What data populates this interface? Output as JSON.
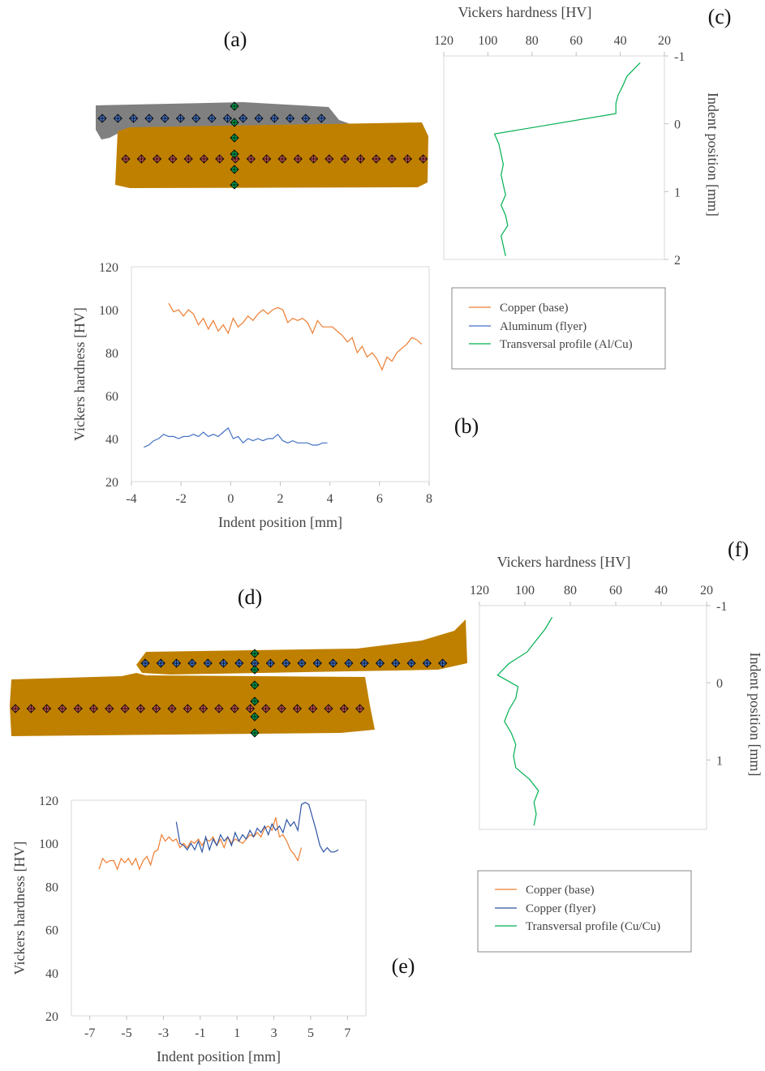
{
  "panel_labels": {
    "a": "(a)",
    "b": "(b)",
    "c": "(c)",
    "d": "(d)",
    "e": "(e)",
    "f": "(f)"
  },
  "colors": {
    "copper_fill": "#BF8000",
    "aluminum_fill": "#808080",
    "marker_blue": "#4472C4",
    "marker_red": "#C0504D",
    "marker_green": "#00A550",
    "series_orange": "#ED7D31",
    "series_blue": "#4472C4",
    "series_green": "#00B050"
  },
  "legend_top": {
    "entries": [
      {
        "label": "Copper (base)",
        "color": "#ED7D31"
      },
      {
        "label": "Aluminum (flyer)",
        "color": "#4472C4"
      },
      {
        "label": "Transversal profile (Al/Cu)",
        "color": "#00B050"
      }
    ]
  },
  "legend_bottom": {
    "entries": [
      {
        "label": "Copper (base)",
        "color": "#ED7D31"
      },
      {
        "label": "Copper (flyer)",
        "color": "#2F55A4"
      },
      {
        "label": "Transversal profile (Cu/Cu)",
        "color": "#00B050"
      }
    ]
  },
  "chart_data": [
    {
      "id": "b",
      "type": "line",
      "xlabel": "Indent position [mm]",
      "ylabel": "Vickers hardness [HV]",
      "xlim": [
        -4,
        8
      ],
      "ylim": [
        20,
        120
      ],
      "xticks": [
        -4,
        -2,
        0,
        2,
        4,
        6,
        8
      ],
      "yticks": [
        20,
        40,
        60,
        80,
        100,
        120
      ],
      "series": [
        {
          "name": "Copper (base)",
          "color": "#ED7D31",
          "x": [
            -2.5,
            -2.3,
            -2.1,
            -1.9,
            -1.7,
            -1.5,
            -1.3,
            -1.1,
            -0.9,
            -0.7,
            -0.5,
            -0.3,
            -0.1,
            0.1,
            0.3,
            0.5,
            0.7,
            0.9,
            1.1,
            1.3,
            1.5,
            1.7,
            1.9,
            2.1,
            2.3,
            2.5,
            2.7,
            2.9,
            3.1,
            3.3,
            3.5,
            3.7,
            3.9,
            4.1,
            4.3,
            4.5,
            4.7,
            4.9,
            5.1,
            5.3,
            5.5,
            5.7,
            5.9,
            6.1,
            6.3,
            6.5,
            6.7,
            6.9,
            7.1,
            7.3,
            7.5,
            7.7
          ],
          "y": [
            103,
            99,
            100,
            97,
            100,
            98,
            93,
            96,
            91,
            95,
            90,
            93,
            89,
            96,
            92,
            94,
            97,
            95,
            98,
            100,
            98,
            100,
            101,
            100,
            94,
            96,
            95,
            96,
            94,
            89,
            95,
            92,
            92,
            92,
            90,
            88,
            85,
            87,
            80,
            83,
            78,
            80,
            77,
            72,
            78,
            76,
            80,
            82,
            84,
            87,
            86,
            84
          ]
        },
        {
          "name": "Aluminum (flyer)",
          "color": "#4472C4",
          "x": [
            -3.5,
            -3.3,
            -3.1,
            -2.9,
            -2.7,
            -2.5,
            -2.3,
            -2.1,
            -1.9,
            -1.7,
            -1.5,
            -1.3,
            -1.1,
            -0.9,
            -0.7,
            -0.5,
            -0.3,
            -0.1,
            0.1,
            0.3,
            0.5,
            0.7,
            0.9,
            1.1,
            1.3,
            1.5,
            1.7,
            1.9,
            2.1,
            2.3,
            2.5,
            2.7,
            2.9,
            3.1,
            3.3,
            3.5,
            3.7,
            3.9
          ],
          "y": [
            36,
            37,
            39,
            40,
            42,
            41,
            41,
            40,
            41,
            41,
            42,
            41,
            43,
            41,
            42,
            41,
            43,
            45,
            40,
            41,
            38,
            40,
            39,
            40,
            39,
            40,
            40,
            42,
            39,
            38,
            39,
            38,
            38,
            38,
            37,
            37,
            38,
            38
          ]
        }
      ]
    },
    {
      "id": "c",
      "type": "line",
      "xlabel": "Vickers hardness [HV]",
      "ylabel": "Indent position [mm]",
      "xlim": [
        120,
        20
      ],
      "ylim": [
        -1,
        2
      ],
      "xticks": [
        120,
        100,
        80,
        60,
        40,
        20
      ],
      "yticks": [
        -1,
        0,
        1,
        2
      ],
      "series": [
        {
          "name": "Transversal profile (Al/Cu)",
          "color": "#00B050",
          "x": [
            31,
            37,
            39,
            41,
            42,
            42,
            97,
            95,
            94,
            93,
            94,
            93,
            92,
            94,
            92,
            91,
            94,
            93,
            92
          ],
          "y": [
            -0.9,
            -0.7,
            -0.55,
            -0.42,
            -0.3,
            -0.15,
            0.15,
            0.3,
            0.45,
            0.6,
            0.75,
            0.9,
            1.05,
            1.2,
            1.35,
            1.5,
            1.65,
            1.8,
            1.95
          ]
        }
      ]
    },
    {
      "id": "e",
      "type": "line",
      "xlabel": "Indent position [mm]",
      "ylabel": "Vickers hardness [HV]",
      "xlim": [
        -8,
        8
      ],
      "ylim": [
        20,
        120
      ],
      "xticks": [
        -7,
        -5,
        -3,
        -1,
        1,
        3,
        5,
        7
      ],
      "yticks": [
        20,
        40,
        60,
        80,
        100,
        120
      ],
      "series": [
        {
          "name": "Copper (base)",
          "color": "#ED7D31",
          "x": [
            -6.5,
            -6.3,
            -6.1,
            -5.9,
            -5.7,
            -5.5,
            -5.3,
            -5.1,
            -4.9,
            -4.7,
            -4.5,
            -4.3,
            -4.1,
            -3.9,
            -3.7,
            -3.5,
            -3.3,
            -3.1,
            -2.9,
            -2.7,
            -2.5,
            -2.3,
            -2.1,
            -1.9,
            -1.7,
            -1.5,
            -1.3,
            -1.1,
            -0.9,
            -0.7,
            -0.5,
            -0.3,
            -0.1,
            0.1,
            0.3,
            0.5,
            0.7,
            0.9,
            1.1,
            1.3,
            1.5,
            1.7,
            1.9,
            2.1,
            2.3,
            2.5,
            2.7,
            2.9,
            3.1,
            3.3,
            3.5,
            3.7,
            3.9,
            4.1,
            4.3,
            4.5
          ],
          "y": [
            88,
            93,
            91,
            92,
            92,
            88,
            93,
            91,
            93,
            90,
            93,
            88,
            92,
            94,
            90,
            96,
            97,
            104,
            101,
            103,
            101,
            102,
            98,
            100,
            98,
            101,
            100,
            102,
            99,
            102,
            101,
            103,
            99,
            102,
            98,
            103,
            100,
            102,
            101,
            100,
            102,
            104,
            103,
            105,
            103,
            107,
            108,
            106,
            112,
            103,
            104,
            101,
            97,
            95,
            92,
            98
          ]
        },
        {
          "name": "Copper (flyer)",
          "color": "#2F55A4",
          "x": [
            -2.3,
            -2.1,
            -1.9,
            -1.7,
            -1.5,
            -1.3,
            -1.1,
            -0.9,
            -0.7,
            -0.5,
            -0.3,
            -0.1,
            0.1,
            0.3,
            0.5,
            0.7,
            0.9,
            1.1,
            1.3,
            1.5,
            1.7,
            1.9,
            2.1,
            2.3,
            2.5,
            2.7,
            2.9,
            3.1,
            3.3,
            3.5,
            3.7,
            3.9,
            4.1,
            4.3,
            4.5,
            4.7,
            4.9,
            5.1,
            5.3,
            5.5,
            5.7,
            5.9,
            6.1,
            6.3,
            6.5
          ],
          "y": [
            110,
            100,
            99,
            97,
            100,
            97,
            101,
            96,
            103,
            97,
            102,
            99,
            104,
            101,
            103,
            99,
            105,
            101,
            104,
            102,
            106,
            103,
            107,
            105,
            108,
            104,
            109,
            106,
            108,
            105,
            111,
            108,
            110,
            106,
            118,
            119,
            118,
            112,
            106,
            99,
            96,
            98,
            96,
            96,
            97
          ]
        }
      ]
    },
    {
      "id": "f",
      "type": "line",
      "xlabel": "Vickers hardness [HV]",
      "ylabel": "Indent position [mm]",
      "xlim": [
        120,
        20
      ],
      "ylim": [
        -1,
        1.9
      ],
      "xticks": [
        120,
        100,
        80,
        60,
        40,
        20
      ],
      "yticks": [
        -1,
        0,
        1
      ],
      "series": [
        {
          "name": "Transversal profile (Cu/Cu)",
          "color": "#00B050",
          "x": [
            88,
            91,
            95,
            99,
            107,
            112,
            103,
            104,
            107,
            109,
            106,
            104,
            105,
            104,
            98,
            94,
            96,
            95,
            96
          ],
          "y": [
            -0.85,
            -0.7,
            -0.55,
            -0.4,
            -0.25,
            -0.1,
            0.05,
            0.2,
            0.35,
            0.5,
            0.65,
            0.8,
            0.95,
            1.1,
            1.25,
            1.4,
            1.55,
            1.7,
            1.85
          ]
        }
      ]
    }
  ]
}
